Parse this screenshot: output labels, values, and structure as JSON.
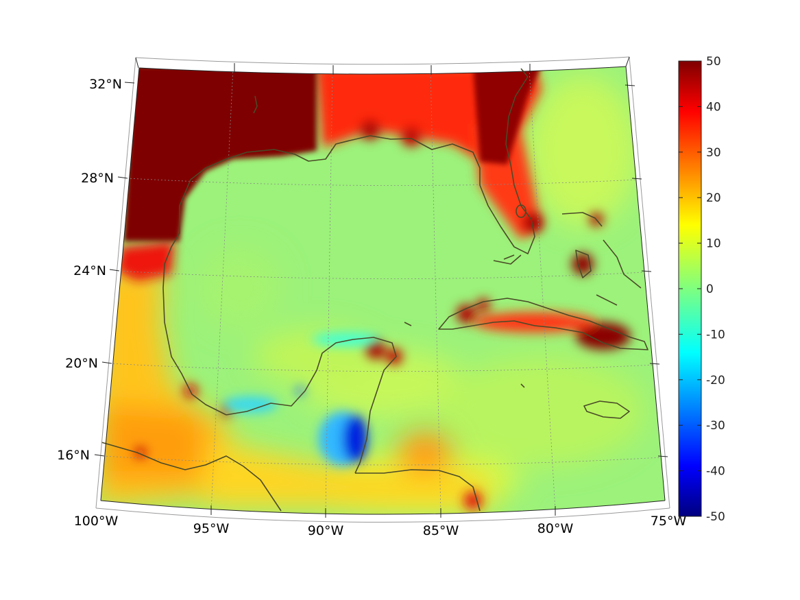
{
  "map": {
    "projection": "conic",
    "region": "Gulf of Mexico and Caribbean",
    "colormap": "jet",
    "grid": true,
    "lon_range": [
      -100,
      -75
    ],
    "lat_range": [
      14,
      33
    ],
    "lon_labels": [
      "100°W",
      "95°W",
      "90°W",
      "85°W",
      "80°W",
      "75°W"
    ],
    "lat_labels": [
      "16°N",
      "20°N",
      "24°N",
      "28°N",
      "32°N"
    ]
  },
  "colorbar": {
    "min": -50,
    "max": 50,
    "ticks": [
      "50",
      "40",
      "30",
      "20",
      "10",
      "0",
      "-10",
      "-20",
      "-30",
      "-40",
      "-50"
    ]
  },
  "colors": {
    "coast": "#4a4a28",
    "grid": "#888888",
    "field_background": "#9cf27a"
  }
}
